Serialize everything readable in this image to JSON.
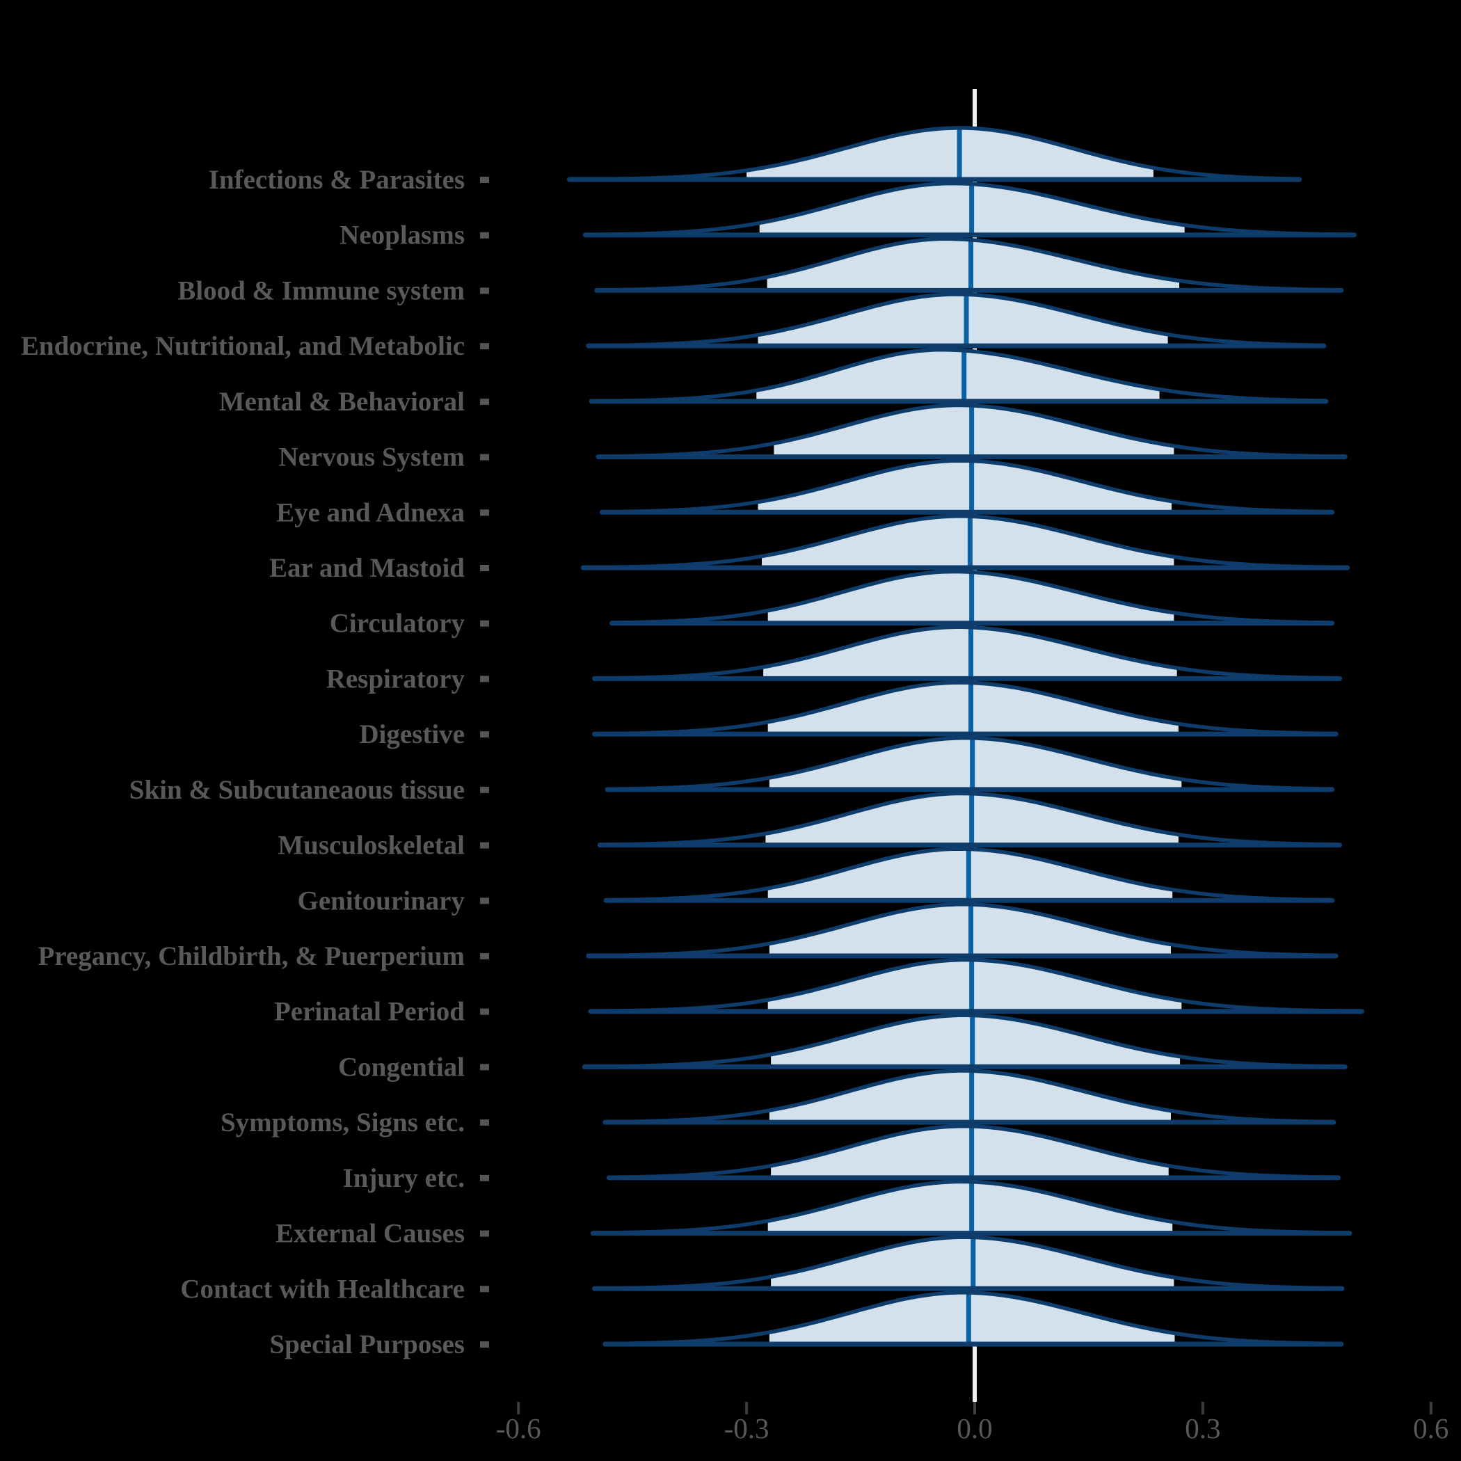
{
  "chart_data": {
    "type": "area",
    "subtype": "ridgeline-density",
    "title": "",
    "xlabel": "",
    "ylabel": "",
    "x_axis": {
      "range": [
        -0.72,
        0.64
      ],
      "grid": false,
      "zero_reference_line": true,
      "ticks": [
        {
          "value": -0.6,
          "label": "-0.6"
        },
        {
          "value": -0.3,
          "label": "-0.3"
        },
        {
          "value": 0.0,
          "label": "0.0"
        },
        {
          "value": 0.3,
          "label": "0.3"
        },
        {
          "value": 0.6,
          "label": "0.6"
        }
      ]
    },
    "peak_height_rel": 0.93,
    "categories": [
      {
        "label": "Infections & Parasites",
        "median": -0.02,
        "mode": -0.02,
        "sd_left": 0.15,
        "sd_right": 0.148,
        "fill_range": [
          -0.3,
          0.235
        ],
        "tail_range": [
          -0.533,
          0.427
        ]
      },
      {
        "label": "Neoplasms",
        "median": -0.004,
        "mode": -0.03,
        "sd_left": 0.148,
        "sd_right": 0.168,
        "fill_range": [
          -0.283,
          0.276
        ],
        "tail_range": [
          -0.512,
          0.499
        ]
      },
      {
        "label": "Blood & Immune system",
        "median": -0.005,
        "mode": -0.038,
        "sd_left": 0.143,
        "sd_right": 0.168,
        "fill_range": [
          -0.273,
          0.269
        ],
        "tail_range": [
          -0.497,
          0.482
        ]
      },
      {
        "label": "Endocrine, Nutritional, and Metabolic",
        "median": -0.011,
        "mode": -0.024,
        "sd_left": 0.148,
        "sd_right": 0.16,
        "fill_range": [
          -0.285,
          0.254
        ],
        "tail_range": [
          -0.508,
          0.459
        ]
      },
      {
        "label": "Mental & Behavioral",
        "median": -0.014,
        "mode": -0.044,
        "sd_left": 0.138,
        "sd_right": 0.168,
        "fill_range": [
          -0.287,
          0.243
        ],
        "tail_range": [
          -0.504,
          0.462
        ]
      },
      {
        "label": "Nervous System",
        "median": -0.004,
        "mode": -0.021,
        "sd_left": 0.148,
        "sd_right": 0.16,
        "fill_range": [
          -0.264,
          0.262
        ],
        "tail_range": [
          -0.495,
          0.487
        ]
      },
      {
        "label": "Eye and Adnexa",
        "median": -0.004,
        "mode": -0.019,
        "sd_left": 0.148,
        "sd_right": 0.158,
        "fill_range": [
          -0.285,
          0.259
        ],
        "tail_range": [
          -0.49,
          0.47
        ]
      },
      {
        "label": "Ear and Mastoid",
        "median": -0.006,
        "mode": -0.02,
        "sd_left": 0.15,
        "sd_right": 0.16,
        "fill_range": [
          -0.28,
          0.262
        ],
        "tail_range": [
          -0.515,
          0.49
        ]
      },
      {
        "label": "Circulatory",
        "median": -0.004,
        "mode": -0.028,
        "sd_left": 0.145,
        "sd_right": 0.162,
        "fill_range": [
          -0.272,
          0.262
        ],
        "tail_range": [
          -0.477,
          0.47
        ]
      },
      {
        "label": "Respiratory",
        "median": -0.005,
        "mode": -0.022,
        "sd_left": 0.148,
        "sd_right": 0.162,
        "fill_range": [
          -0.278,
          0.266
        ],
        "tail_range": [
          -0.5,
          0.48
        ]
      },
      {
        "label": "Digestive",
        "median": -0.005,
        "mode": -0.02,
        "sd_left": 0.148,
        "sd_right": 0.16,
        "fill_range": [
          -0.272,
          0.268
        ],
        "tail_range": [
          -0.5,
          0.475
        ]
      },
      {
        "label": "Skin & Subcutaneaous tissue",
        "median": -0.003,
        "mode": -0.012,
        "sd_left": 0.15,
        "sd_right": 0.158,
        "fill_range": [
          -0.27,
          0.272
        ],
        "tail_range": [
          -0.483,
          0.47
        ]
      },
      {
        "label": "Musculoskeletal",
        "median": -0.004,
        "mode": -0.018,
        "sd_left": 0.148,
        "sd_right": 0.16,
        "fill_range": [
          -0.275,
          0.268
        ],
        "tail_range": [
          -0.493,
          0.48
        ]
      },
      {
        "label": "Genitourinary",
        "median": -0.008,
        "mode": -0.02,
        "sd_left": 0.148,
        "sd_right": 0.158,
        "fill_range": [
          -0.272,
          0.26
        ],
        "tail_range": [
          -0.485,
          0.47
        ]
      },
      {
        "label": "Pregancy, Childbirth, & Puerperium",
        "median": -0.005,
        "mode": -0.016,
        "sd_left": 0.15,
        "sd_right": 0.158,
        "fill_range": [
          -0.27,
          0.258
        ],
        "tail_range": [
          -0.508,
          0.475
        ]
      },
      {
        "label": "Perinatal Period",
        "median": -0.004,
        "mode": -0.012,
        "sd_left": 0.15,
        "sd_right": 0.16,
        "fill_range": [
          -0.272,
          0.272
        ],
        "tail_range": [
          -0.505,
          0.509
        ]
      },
      {
        "label": "Congential",
        "median": -0.003,
        "mode": -0.014,
        "sd_left": 0.15,
        "sd_right": 0.158,
        "fill_range": [
          -0.268,
          0.27
        ],
        "tail_range": [
          -0.513,
          0.487
        ]
      },
      {
        "label": "Symptoms, Signs etc.",
        "median": -0.004,
        "mode": -0.016,
        "sd_left": 0.148,
        "sd_right": 0.158,
        "fill_range": [
          -0.27,
          0.258
        ],
        "tail_range": [
          -0.486,
          0.472
        ]
      },
      {
        "label": "Injury etc.",
        "median": -0.004,
        "mode": -0.015,
        "sd_left": 0.148,
        "sd_right": 0.158,
        "fill_range": [
          -0.268,
          0.255
        ],
        "tail_range": [
          -0.481,
          0.478
        ]
      },
      {
        "label": "External Causes",
        "median": -0.004,
        "mode": -0.018,
        "sd_left": 0.15,
        "sd_right": 0.16,
        "fill_range": [
          -0.272,
          0.26
        ],
        "tail_range": [
          -0.502,
          0.493
        ]
      },
      {
        "label": "Contact with Healthcare",
        "median": -0.002,
        "mode": -0.014,
        "sd_left": 0.148,
        "sd_right": 0.158,
        "fill_range": [
          -0.268,
          0.262
        ],
        "tail_range": [
          -0.5,
          0.483
        ]
      },
      {
        "label": "Special Purposes",
        "median": -0.008,
        "mode": -0.016,
        "sd_left": 0.148,
        "sd_right": 0.158,
        "fill_range": [
          -0.27,
          0.263
        ],
        "tail_range": [
          -0.486,
          0.482
        ]
      }
    ],
    "colors": {
      "background": "#000000",
      "density_fill": "#d3e1ed",
      "density_outline": "#0e3d6c",
      "median_line": "#0a61a4",
      "zero_line": "#f0f0f0",
      "category_text": "#595959",
      "category_tick": "#555555",
      "axis_text": "#595959",
      "axis_tick": "#3d3d3d"
    }
  }
}
